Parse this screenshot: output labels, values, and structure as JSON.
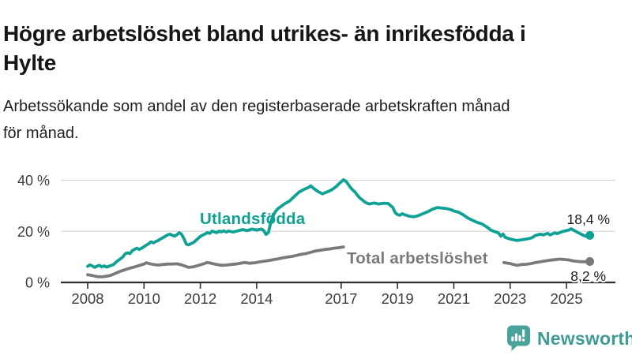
{
  "header": {
    "title_lines": [
      "Högre arbetslöshet bland utrikes- än inrikesfödda i",
      "Hylte"
    ],
    "subtitle_lines": [
      "Arbetssökande som andel av den registerbaserade arbetskraften månad",
      "för månad."
    ]
  },
  "chart_data": {
    "type": "line",
    "title": "Högre arbetslöshet bland utrikes- än inrikesfödda i Hylte",
    "subtitle": "Arbetssökande som andel av den registerbaserade arbetskraften månad för månad.",
    "xlabel": "",
    "ylabel": "",
    "grid": true,
    "legend_position": "inline-labels",
    "xlim": [
      2007.05,
      2026.75
    ],
    "ylim": [
      0,
      43
    ],
    "x_axis": {
      "values": [
        2008,
        2010,
        2012,
        2014,
        2017,
        2019,
        2021,
        2023,
        2025
      ],
      "labels": [
        "2008",
        "2010",
        "2012",
        "2014",
        "2017",
        "2019",
        "2021",
        "2023",
        "2025"
      ]
    },
    "y_axis": {
      "values": [
        0,
        20,
        40
      ],
      "labels": [
        "0 %",
        "20 %",
        "40 %"
      ]
    },
    "series": [
      {
        "name": "Utlandsfödda",
        "color": "#0fa294",
        "end_value": 18.4,
        "end_label": "18,4 %",
        "segments": [
          [
            [
              2008.0,
              6.3
            ],
            [
              2008.08,
              6.9
            ],
            [
              2008.17,
              6.4
            ],
            [
              2008.25,
              5.9
            ],
            [
              2008.33,
              6.4
            ],
            [
              2008.42,
              6.7
            ],
            [
              2008.5,
              6.1
            ],
            [
              2008.58,
              6.5
            ],
            [
              2008.67,
              6.0
            ],
            [
              2008.75,
              6.3
            ],
            [
              2008.83,
              6.6
            ],
            [
              2008.92,
              7.0
            ],
            [
              2009.0,
              7.9
            ],
            [
              2009.08,
              8.6
            ],
            [
              2009.17,
              9.3
            ],
            [
              2009.25,
              10.0
            ],
            [
              2009.33,
              11.2
            ],
            [
              2009.42,
              11.6
            ],
            [
              2009.5,
              11.3
            ],
            [
              2009.58,
              12.4
            ],
            [
              2009.67,
              13.0
            ],
            [
              2009.75,
              13.4
            ],
            [
              2009.83,
              12.9
            ],
            [
              2009.92,
              13.4
            ],
            [
              2010.0,
              14.0
            ],
            [
              2010.08,
              14.6
            ],
            [
              2010.17,
              15.2
            ],
            [
              2010.25,
              15.9
            ],
            [
              2010.33,
              15.5
            ],
            [
              2010.42,
              16.0
            ],
            [
              2010.5,
              16.4
            ],
            [
              2010.58,
              17.0
            ],
            [
              2010.67,
              17.5
            ],
            [
              2010.75,
              18.0
            ],
            [
              2010.83,
              18.6
            ],
            [
              2010.92,
              18.9
            ],
            [
              2011.0,
              18.5
            ],
            [
              2011.08,
              18.1
            ],
            [
              2011.17,
              18.7
            ],
            [
              2011.25,
              19.5
            ],
            [
              2011.33,
              18.9
            ],
            [
              2011.42,
              17.1
            ],
            [
              2011.5,
              15.0
            ],
            [
              2011.58,
              14.7
            ],
            [
              2011.67,
              15.2
            ],
            [
              2011.75,
              15.6
            ],
            [
              2011.83,
              16.3
            ],
            [
              2011.92,
              17.2
            ],
            [
              2012.0,
              18.0
            ],
            [
              2012.08,
              18.5
            ],
            [
              2012.17,
              19.0
            ],
            [
              2012.25,
              19.5
            ],
            [
              2012.33,
              19.2
            ],
            [
              2012.42,
              20.1
            ],
            [
              2012.5,
              19.8
            ],
            [
              2012.58,
              19.5
            ],
            [
              2012.67,
              20.1
            ],
            [
              2012.75,
              19.8
            ],
            [
              2012.83,
              20.2
            ],
            [
              2012.92,
              19.7
            ],
            [
              2013.0,
              20.1
            ],
            [
              2013.17,
              19.7
            ],
            [
              2013.33,
              20.2
            ],
            [
              2013.5,
              20.7
            ],
            [
              2013.67,
              20.3
            ],
            [
              2013.83,
              20.9
            ],
            [
              2014.0,
              20.5
            ],
            [
              2014.17,
              20.9
            ],
            [
              2014.25,
              20.3
            ],
            [
              2014.33,
              18.8
            ],
            [
              2014.42,
              19.6
            ],
            [
              2014.5,
              23.5
            ],
            [
              2014.58,
              26.0
            ],
            [
              2014.67,
              27.8
            ],
            [
              2014.75,
              28.8
            ],
            [
              2014.83,
              29.5
            ],
            [
              2014.92,
              30.2
            ],
            [
              2015.0,
              30.8
            ],
            [
              2015.17,
              31.9
            ],
            [
              2015.33,
              33.6
            ],
            [
              2015.5,
              35.3
            ],
            [
              2015.67,
              36.4
            ],
            [
              2015.83,
              37.1
            ],
            [
              2015.92,
              37.8
            ],
            [
              2016.0,
              37.0
            ],
            [
              2016.17,
              35.6
            ],
            [
              2016.33,
              34.7
            ],
            [
              2016.5,
              35.4
            ],
            [
              2016.67,
              36.3
            ],
            [
              2016.83,
              37.6
            ],
            [
              2016.92,
              38.6
            ],
            [
              2017.08,
              40.2
            ],
            [
              2017.17,
              39.6
            ],
            [
              2017.25,
              38.4
            ],
            [
              2017.33,
              37.2
            ],
            [
              2017.42,
              36.1
            ],
            [
              2017.5,
              35.3
            ],
            [
              2017.58,
              34.1
            ],
            [
              2017.67,
              33.0
            ],
            [
              2017.75,
              32.3
            ],
            [
              2017.83,
              31.6
            ],
            [
              2017.92,
              31.0
            ],
            [
              2018.0,
              30.7
            ],
            [
              2018.17,
              31.1
            ],
            [
              2018.33,
              30.7
            ],
            [
              2018.5,
              31.0
            ],
            [
              2018.67,
              30.9
            ],
            [
              2018.83,
              29.4
            ],
            [
              2018.92,
              27.3
            ],
            [
              2019.0,
              26.6
            ],
            [
              2019.08,
              26.3
            ],
            [
              2019.17,
              26.9
            ],
            [
              2019.25,
              26.5
            ],
            [
              2019.42,
              25.9
            ],
            [
              2019.58,
              25.7
            ],
            [
              2019.75,
              26.2
            ],
            [
              2019.92,
              27.0
            ],
            [
              2020.08,
              27.7
            ],
            [
              2020.25,
              28.7
            ],
            [
              2020.42,
              29.3
            ],
            [
              2020.58,
              29.1
            ],
            [
              2020.75,
              28.9
            ],
            [
              2020.92,
              28.4
            ],
            [
              2021.0,
              28.0
            ],
            [
              2021.17,
              27.5
            ],
            [
              2021.33,
              26.5
            ],
            [
              2021.5,
              25.2
            ],
            [
              2021.67,
              24.3
            ],
            [
              2021.83,
              23.5
            ],
            [
              2021.92,
              23.2
            ],
            [
              2022.0,
              22.9
            ],
            [
              2022.17,
              21.7
            ],
            [
              2022.33,
              20.4
            ],
            [
              2022.5,
              19.7
            ],
            [
              2022.58,
              19.4
            ],
            [
              2022.67,
              18.1
            ],
            [
              2022.75,
              18.9
            ],
            [
              2022.83,
              17.6
            ],
            [
              2022.92,
              17.3
            ],
            [
              2023.0,
              17.0
            ],
            [
              2023.17,
              16.6
            ],
            [
              2023.25,
              16.4
            ],
            [
              2023.42,
              16.7
            ],
            [
              2023.58,
              17.0
            ],
            [
              2023.75,
              17.4
            ],
            [
              2023.92,
              18.5
            ],
            [
              2024.08,
              18.9
            ],
            [
              2024.17,
              18.6
            ],
            [
              2024.33,
              19.2
            ],
            [
              2024.42,
              18.6
            ],
            [
              2024.58,
              19.4
            ],
            [
              2024.67,
              19.1
            ],
            [
              2024.83,
              19.8
            ],
            [
              2024.92,
              20.1
            ],
            [
              2025.08,
              20.5
            ],
            [
              2025.17,
              21.0
            ],
            [
              2025.33,
              20.0
            ],
            [
              2025.5,
              19.0
            ],
            [
              2025.67,
              18.1
            ],
            [
              2025.83,
              18.4
            ]
          ]
        ]
      },
      {
        "name": "Total arbetslöshet",
        "color": "#7a7a7a",
        "end_value": 8.2,
        "end_label": "8,2 %",
        "segments": [
          [
            [
              2008.0,
              3.0
            ],
            [
              2008.17,
              2.7
            ],
            [
              2008.33,
              2.3
            ],
            [
              2008.5,
              2.2
            ],
            [
              2008.67,
              2.4
            ],
            [
              2008.83,
              2.8
            ],
            [
              2009.0,
              3.6
            ],
            [
              2009.17,
              4.4
            ],
            [
              2009.33,
              5.0
            ],
            [
              2009.5,
              5.6
            ],
            [
              2009.67,
              6.1
            ],
            [
              2009.83,
              6.6
            ],
            [
              2010.0,
              7.2
            ],
            [
              2010.08,
              7.7
            ],
            [
              2010.17,
              7.4
            ],
            [
              2010.33,
              7.0
            ],
            [
              2010.5,
              6.8
            ],
            [
              2010.67,
              7.0
            ],
            [
              2010.83,
              7.2
            ],
            [
              2011.0,
              7.2
            ],
            [
              2011.17,
              7.3
            ],
            [
              2011.33,
              6.9
            ],
            [
              2011.5,
              6.2
            ],
            [
              2011.58,
              5.9
            ],
            [
              2011.75,
              6.1
            ],
            [
              2011.92,
              6.6
            ],
            [
              2012.0,
              6.9
            ],
            [
              2012.17,
              7.5
            ],
            [
              2012.25,
              7.8
            ],
            [
              2012.42,
              7.4
            ],
            [
              2012.58,
              7.0
            ],
            [
              2012.75,
              6.7
            ],
            [
              2012.92,
              6.8
            ],
            [
              2013.08,
              7.0
            ],
            [
              2013.25,
              7.2
            ],
            [
              2013.42,
              7.5
            ],
            [
              2013.58,
              7.8
            ],
            [
              2013.75,
              7.5
            ],
            [
              2013.92,
              7.7
            ],
            [
              2014.08,
              8.0
            ],
            [
              2014.25,
              8.3
            ],
            [
              2014.42,
              8.6
            ],
            [
              2014.58,
              8.9
            ],
            [
              2014.75,
              9.2
            ],
            [
              2014.92,
              9.6
            ],
            [
              2015.08,
              9.9
            ],
            [
              2015.25,
              10.2
            ],
            [
              2015.42,
              10.6
            ],
            [
              2015.58,
              11.0
            ],
            [
              2015.75,
              11.3
            ],
            [
              2015.92,
              11.8
            ],
            [
              2016.08,
              12.3
            ],
            [
              2016.25,
              12.6
            ],
            [
              2016.42,
              12.9
            ],
            [
              2016.58,
              13.1
            ],
            [
              2016.75,
              13.4
            ],
            [
              2016.92,
              13.6
            ],
            [
              2017.08,
              13.9
            ]
          ],
          [
            [
              2022.78,
              7.8
            ],
            [
              2022.92,
              7.5
            ],
            [
              2023.0,
              7.4
            ],
            [
              2023.08,
              7.1
            ],
            [
              2023.25,
              6.7
            ],
            [
              2023.42,
              7.0
            ],
            [
              2023.58,
              7.1
            ],
            [
              2023.75,
              7.4
            ],
            [
              2023.92,
              7.8
            ],
            [
              2024.08,
              8.1
            ],
            [
              2024.25,
              8.4
            ],
            [
              2024.42,
              8.7
            ],
            [
              2024.58,
              8.9
            ],
            [
              2024.75,
              9.1
            ],
            [
              2024.92,
              9.0
            ],
            [
              2025.08,
              8.8
            ],
            [
              2025.25,
              8.4
            ],
            [
              2025.42,
              8.2
            ],
            [
              2025.58,
              8.1
            ],
            [
              2025.83,
              8.2
            ]
          ]
        ]
      }
    ]
  },
  "branding": {
    "name": "Newsworthy",
    "logo_icon": "bar-chart-speech-bubble",
    "color": "#3f9c95",
    "bubble_color": "#4aa39b"
  },
  "colors": {
    "background": "#ffffff",
    "title_text": "#161616",
    "subtitle_text": "#212121",
    "axis": "#2f2f2f",
    "axis_labels": "#3c3c3c",
    "gridline": "#d9d9d9",
    "annotation_text": "#1b1b1b",
    "series_foreign_born": "#0fa294",
    "series_total": "#7a7a7a"
  }
}
